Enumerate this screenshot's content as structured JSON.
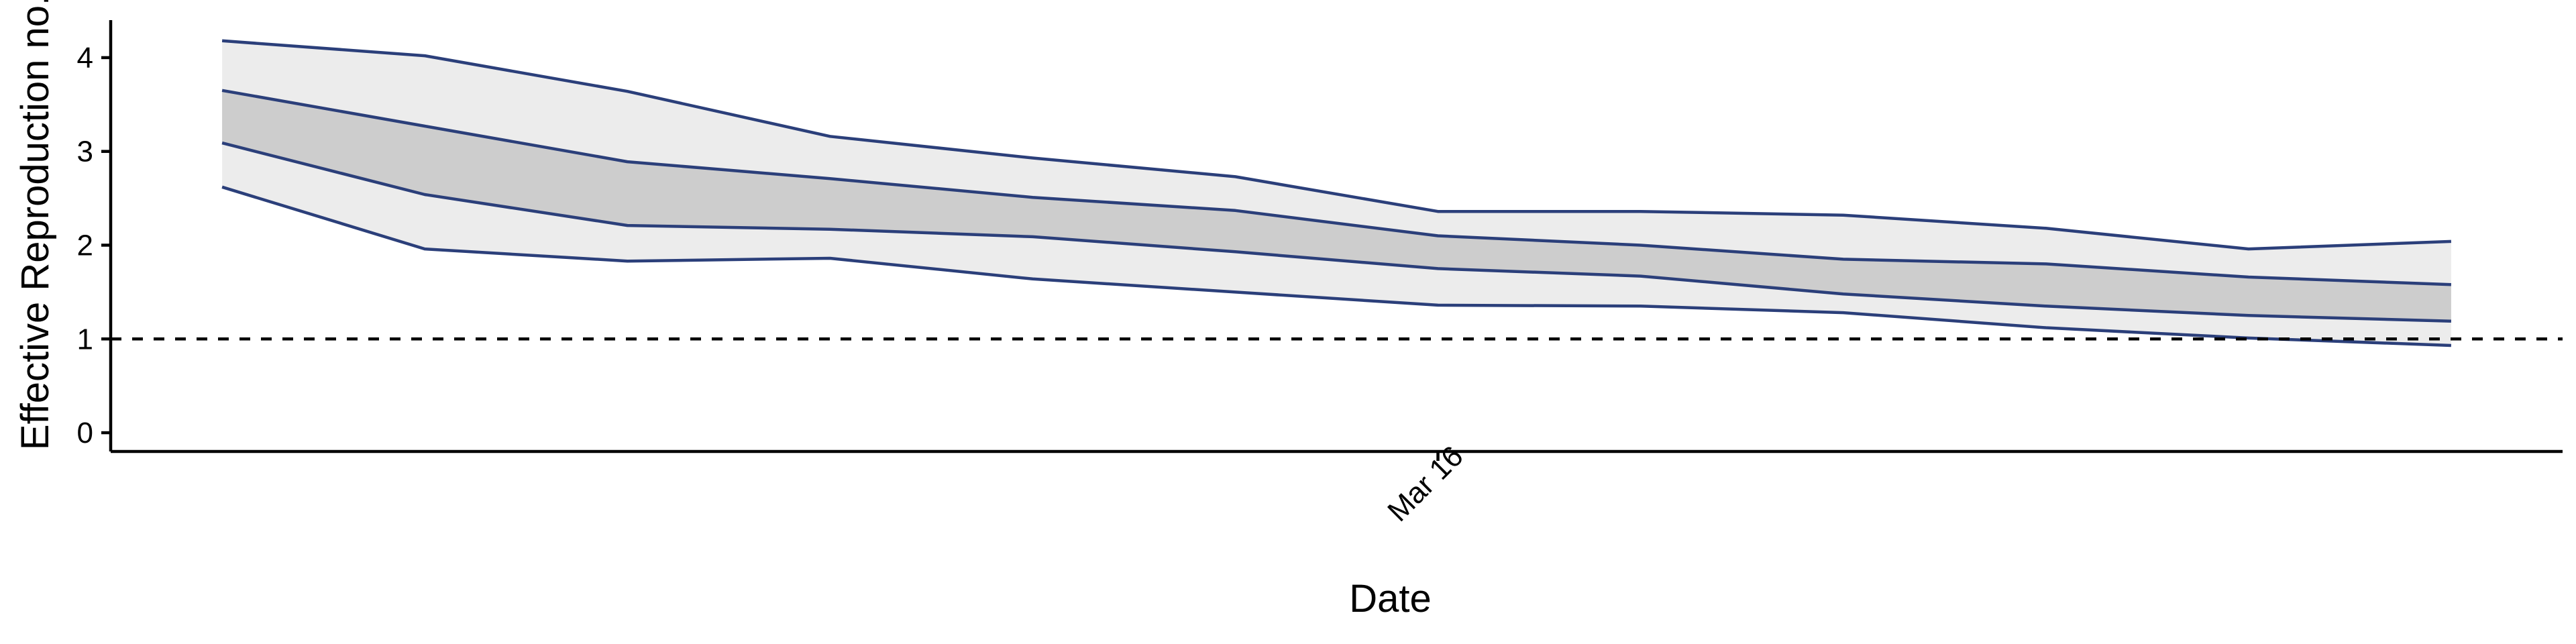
{
  "chart_data": {
    "type": "line",
    "title": "",
    "xlabel": "Date",
    "ylabel": "Effective Reproduction no.",
    "x_tick_labels": [
      {
        "x": 6,
        "label": "Mar 16"
      }
    ],
    "y_ticks": [
      0,
      1,
      2,
      3,
      4
    ],
    "ylim": [
      -0.2,
      4.4
    ],
    "xlim": [
      -0.55,
      11.55
    ],
    "x": [
      0,
      1,
      2,
      3,
      4,
      5,
      6,
      7,
      8,
      9,
      10,
      11
    ],
    "series": [
      {
        "role": "outer_upper",
        "values": [
          4.18,
          4.02,
          3.64,
          3.16,
          2.93,
          2.73,
          2.36,
          2.36,
          2.32,
          2.18,
          1.96,
          2.04
        ]
      },
      {
        "role": "inner_upper",
        "values": [
          3.65,
          3.27,
          2.89,
          2.71,
          2.51,
          2.37,
          2.1,
          2.0,
          1.85,
          1.8,
          1.66,
          1.58
        ]
      },
      {
        "role": "inner_lower",
        "values": [
          3.09,
          2.54,
          2.21,
          2.17,
          2.09,
          1.93,
          1.75,
          1.67,
          1.48,
          1.35,
          1.25,
          1.19
        ]
      },
      {
        "role": "outer_lower",
        "values": [
          2.62,
          1.96,
          1.83,
          1.86,
          1.64,
          1.5,
          1.36,
          1.35,
          1.28,
          1.12,
          1.01,
          0.93
        ]
      }
    ],
    "reference_line": {
      "y": 1,
      "style": "dashed"
    },
    "colors": {
      "line": "#2b3f7a",
      "outer_band": "#ececec",
      "inner_band": "#cdcdcd",
      "axis": "#000000",
      "reference": "#000000"
    },
    "grid": false,
    "legend": "none"
  }
}
